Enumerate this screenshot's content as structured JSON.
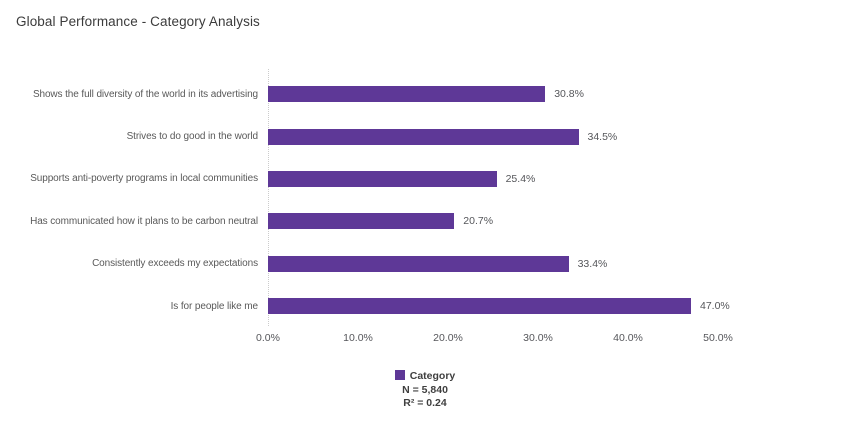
{
  "page": {
    "title": "Global Performance - Category Analysis"
  },
  "colors": {
    "bar": "#5e3897",
    "category_label_text": "#595959",
    "value_label_text": "#55565a",
    "tick_text": "#55565a",
    "title_text": "#3b3b3b",
    "legend_text": "#3f3f3f",
    "axis_line": "#cccccc",
    "background": "#ffffff"
  },
  "chart_data": {
    "type": "bar",
    "orientation": "horizontal",
    "title": "Global Performance - Category Analysis",
    "categories": [
      "Shows the full diversity of the world in its advertising",
      "Strives to do good in the world",
      "Supports anti-poverty programs in local communities",
      "Has communicated how it plans to be carbon neutral",
      "Consistently exceeds my expectations",
      "Is for people like me"
    ],
    "values": [
      30.8,
      34.5,
      25.4,
      20.7,
      33.4,
      47.0
    ],
    "value_labels": [
      "30.8%",
      "34.5%",
      "25.4%",
      "20.7%",
      "33.4%",
      "47.0%"
    ],
    "xlabel": "",
    "ylabel": "",
    "xlim": [
      0,
      50
    ],
    "xtick_values": [
      0,
      10,
      20,
      30,
      40,
      50
    ],
    "xtick_labels": [
      "0.0%",
      "10.0%",
      "20.0%",
      "30.0%",
      "40.0%",
      "50.0%"
    ],
    "grid": false,
    "bar_color": "#5e3897",
    "legend": {
      "position": "bottom-center",
      "series_label": "Category",
      "sample_size": "N = 5,840",
      "r_squared": "R² = 0.24"
    }
  }
}
